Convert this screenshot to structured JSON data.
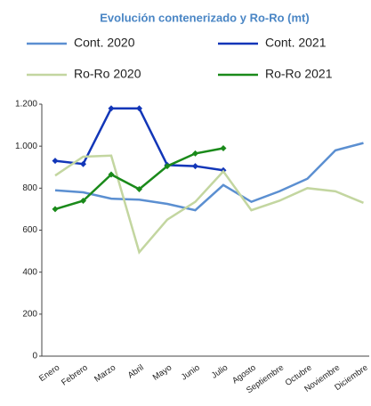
{
  "chart_data": {
    "type": "line",
    "title": "Evolución contenerizado y Ro-Ro (mt)",
    "categories": [
      "Enero",
      "Febrero",
      "Marzo",
      "Abril",
      "Mayo",
      "Junio",
      "Julio",
      "Agosto",
      "Septiembre",
      "Octubre",
      "Noviembre",
      "Diciembre"
    ],
    "series": [
      {
        "name": "Cont. 2020",
        "color": "#5b8fd1",
        "markers": false,
        "values": [
          790,
          780,
          750,
          745,
          725,
          695,
          815,
          735,
          785,
          845,
          980,
          1015
        ]
      },
      {
        "name": "Cont. 2021",
        "color": "#1236b8",
        "markers": true,
        "values": [
          930,
          915,
          1180,
          1180,
          910,
          905,
          885,
          null,
          null,
          null,
          null,
          null
        ]
      },
      {
        "name": "Ro-Ro 2020",
        "color": "#c3d6a0",
        "markers": false,
        "values": [
          860,
          950,
          955,
          495,
          650,
          735,
          880,
          695,
          740,
          800,
          785,
          730
        ]
      },
      {
        "name": "Ro-Ro 2021",
        "color": "#1a8a1a",
        "markers": true,
        "values": [
          700,
          740,
          865,
          795,
          905,
          965,
          990,
          null,
          null,
          null,
          null,
          null
        ]
      }
    ],
    "ylim": [
      0,
      1200
    ],
    "yticks": [
      0,
      200,
      400,
      600,
      800,
      {
        "value": 1000,
        "label": "1.000"
      },
      {
        "value": 1200,
        "label": "1.200"
      }
    ],
    "grid": false
  }
}
